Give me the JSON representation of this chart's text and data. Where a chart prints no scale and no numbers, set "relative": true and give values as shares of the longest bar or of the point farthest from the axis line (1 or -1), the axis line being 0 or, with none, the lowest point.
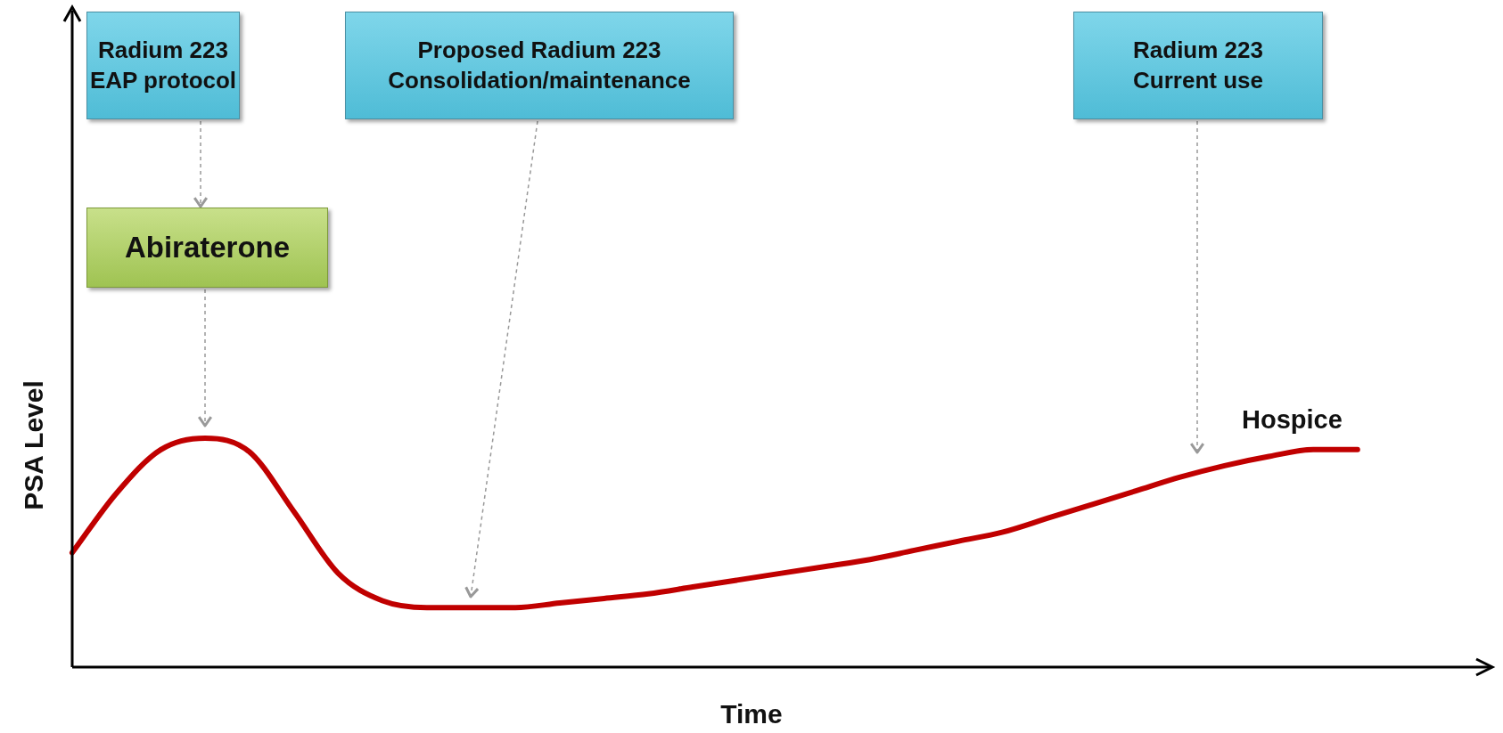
{
  "chart_data": {
    "type": "line",
    "relative": true,
    "xlabel": "Time",
    "ylabel": "PSA Level",
    "categories": [
      null,
      null,
      null,
      null,
      null,
      null,
      null,
      null,
      null,
      null,
      null,
      null,
      null,
      null,
      null,
      null,
      null,
      null,
      null,
      null,
      null,
      null,
      null,
      null,
      null,
      null,
      null,
      null,
      null,
      null,
      null,
      null,
      null
    ],
    "series": [
      {
        "color": "#c00000",
        "values": [
          0.5,
          0.76,
          0.95,
          1.0,
          0.94,
          0.68,
          0.41,
          0.29,
          0.26,
          0.26,
          0.26,
          0.28,
          0.3,
          0.32,
          0.35,
          0.38,
          0.41,
          0.44,
          0.47,
          0.51,
          0.55,
          0.59,
          0.65,
          0.71,
          0.77,
          0.83,
          0.88,
          0.92,
          0.95,
          0.95,
          null,
          null,
          null
        ]
      }
    ],
    "annotations": [
      "Radium 223\nEAP protocol",
      "Proposed Radium 223\nConsolidation/maintenance",
      "Radium 223\nCurrent use",
      "Abiraterone",
      "Hospice"
    ],
    "legend": false,
    "marker": "none",
    "line_style": "solid"
  }
}
